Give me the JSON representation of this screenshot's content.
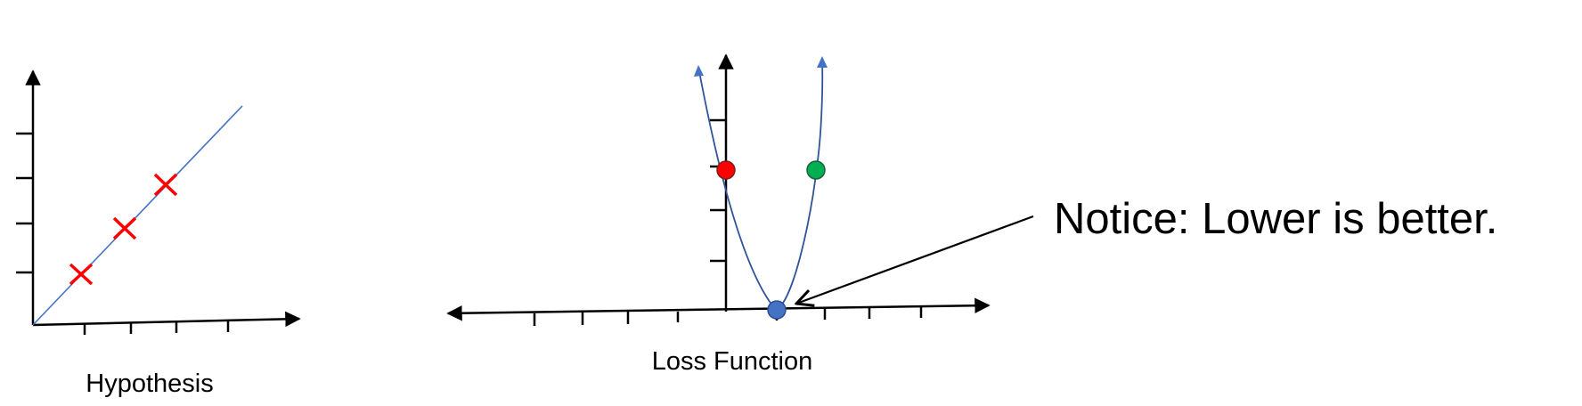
{
  "hypothesis_plot": {
    "caption": "Hypothesis",
    "colors": {
      "axis": "#000000",
      "line": "#4472c4",
      "marker": "#ff0000"
    }
  },
  "loss_plot": {
    "caption": "Loss Function",
    "points": [
      {
        "name": "red-point",
        "color": "#ff0000"
      },
      {
        "name": "green-point",
        "color": "#00b050"
      },
      {
        "name": "minimum-point",
        "color": "#4472c4"
      }
    ],
    "curve_color": "#2f5597"
  },
  "annotation": {
    "text": "Notice: Lower is better."
  }
}
